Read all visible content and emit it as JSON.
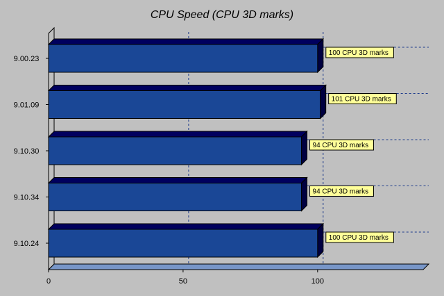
{
  "chart_data": {
    "type": "bar",
    "orientation": "horizontal",
    "title": "CPU Speed (CPU 3D marks)",
    "categories": [
      "9.00.23",
      "9.01.09",
      "9.10.30",
      "9.10.34",
      "9.10.24"
    ],
    "values": [
      100,
      101,
      94,
      94,
      100
    ],
    "data_labels": [
      "100 CPU 3D marks",
      "101 CPU 3D marks",
      "94 CPU 3D marks",
      "94 CPU 3D marks",
      "100 CPU 3D marks"
    ],
    "x_ticks": [
      "0",
      "50",
      "100"
    ],
    "xlim": [
      0,
      140
    ],
    "grid": true,
    "style": "3d",
    "colors": {
      "background": "#c0c0c0",
      "bar_front": "#1a4796",
      "bar_top": "#00005e",
      "bar_side": "#000040",
      "floor": "#7896c8",
      "wall_edge": "#ffffff",
      "label_fill": "#ffff99",
      "grid": "#1e3c8c"
    }
  }
}
